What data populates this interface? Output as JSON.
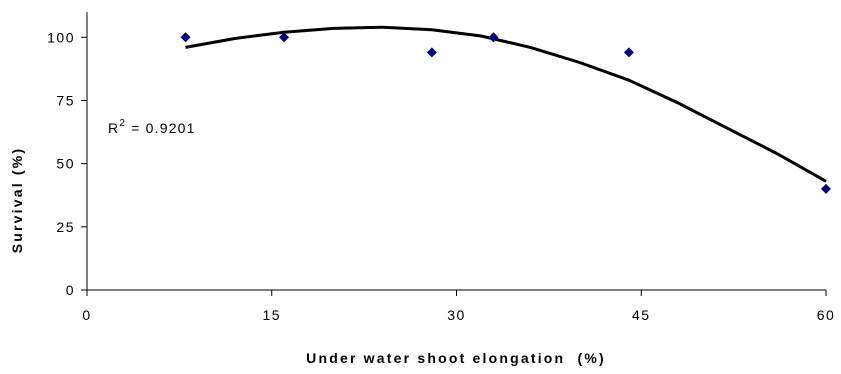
{
  "chart_data": {
    "type": "scatter",
    "title": "",
    "xlabel": "Under water shoot elongation  (%)",
    "ylabel": "Survival (%)",
    "xlim": [
      0,
      60
    ],
    "ylim": [
      0,
      110
    ],
    "x_ticks": [
      "0",
      "15",
      "30",
      "45",
      "60"
    ],
    "y_ticks": [
      "0",
      "25",
      "50",
      "75",
      "100"
    ],
    "grid": false,
    "legend": "none",
    "series": [
      {
        "marker": "diamond",
        "color": "#00007f",
        "points": [
          {
            "x": 8,
            "y": 100
          },
          {
            "x": 16,
            "y": 100
          },
          {
            "x": 28,
            "y": 94
          },
          {
            "x": 33,
            "y": 100
          },
          {
            "x": 44,
            "y": 94
          },
          {
            "x": 60,
            "y": 40
          }
        ]
      }
    ],
    "trendline": {
      "type": "polynomial",
      "order": 2,
      "color": "#000000",
      "points": [
        {
          "x": 8,
          "y": 96
        },
        {
          "x": 12,
          "y": 99.5
        },
        {
          "x": 16,
          "y": 102
        },
        {
          "x": 20,
          "y": 103.5
        },
        {
          "x": 24,
          "y": 104
        },
        {
          "x": 28,
          "y": 103
        },
        {
          "x": 32,
          "y": 100.5
        },
        {
          "x": 36,
          "y": 96
        },
        {
          "x": 40,
          "y": 90
        },
        {
          "x": 44,
          "y": 83
        },
        {
          "x": 48,
          "y": 74
        },
        {
          "x": 52,
          "y": 64
        },
        {
          "x": 56,
          "y": 54
        },
        {
          "x": 60,
          "y": 43
        }
      ]
    },
    "annotation": {
      "r2_label": "R",
      "r2_superscript": "2",
      "r2_text": " = 0.9201"
    }
  }
}
